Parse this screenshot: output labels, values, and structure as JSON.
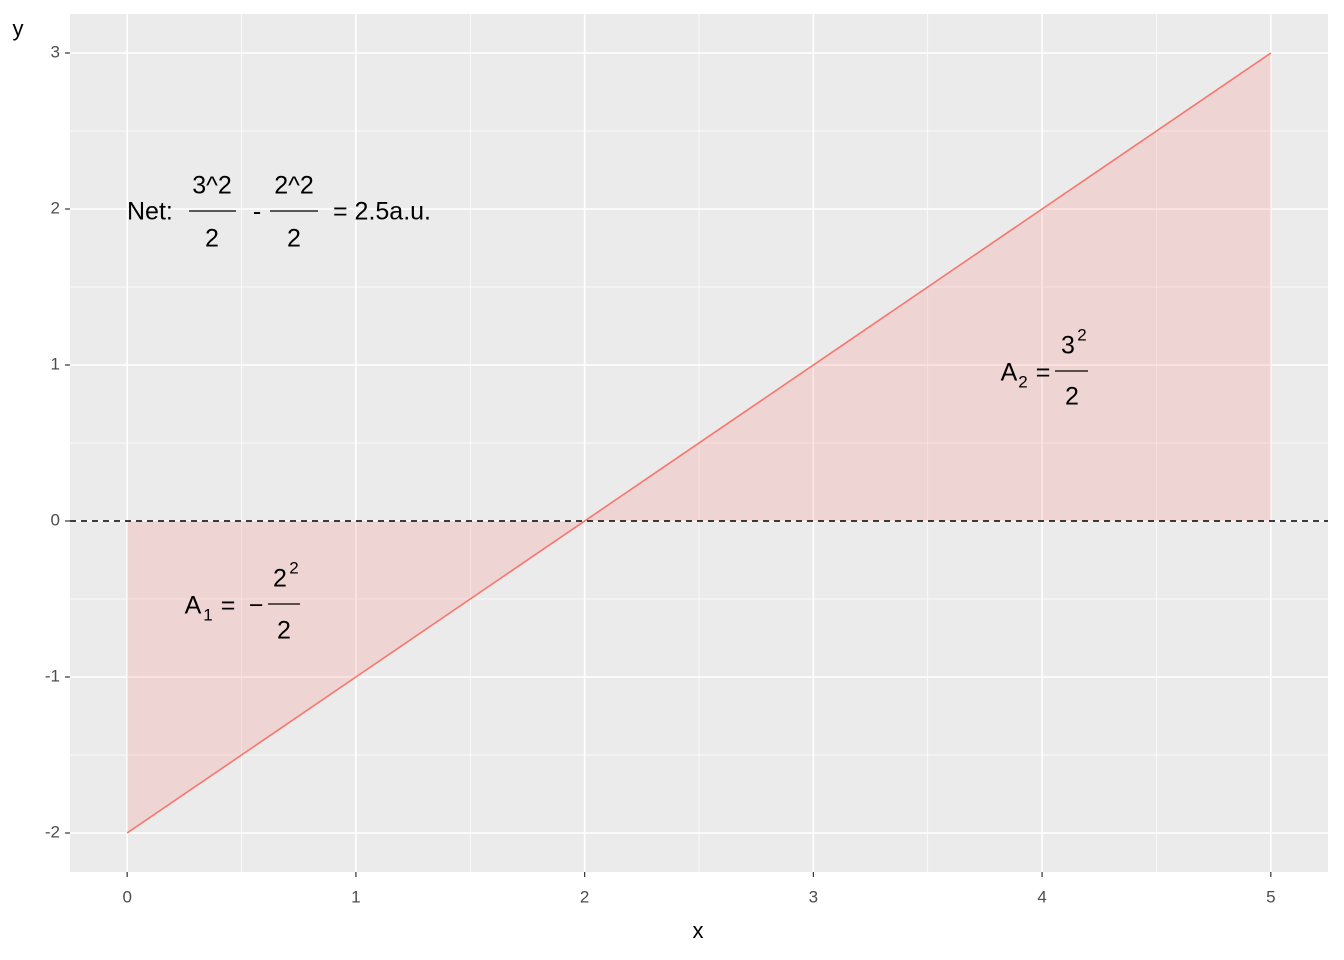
{
  "chart_data": {
    "type": "area",
    "x_label": "x",
    "y_label": "y",
    "xlim": [
      -0.25,
      5.25
    ],
    "ylim": [
      -2.25,
      3.25
    ],
    "xticks": [
      0,
      1,
      2,
      3,
      4,
      5
    ],
    "yticks": [
      -2,
      -1,
      0,
      1,
      2,
      3
    ],
    "grid": true,
    "minor_grid": true,
    "panel_color": "#ebebeb",
    "grid_color": "#ffffff",
    "series": [
      {
        "x": [
          0,
          5
        ],
        "values": [
          -2,
          3
        ],
        "color": "#F8766D",
        "fill_opacity": 0.2
      }
    ],
    "hline": {
      "value": 0,
      "color": "#000000",
      "dashed": true
    },
    "net_label": {
      "prefix": "Net:",
      "term1": {
        "numerator": "3^2",
        "denominator": "2"
      },
      "operator": "-",
      "term2": {
        "numerator": "2^2",
        "denominator": "2"
      },
      "result": "= 2.5a.u."
    },
    "area_labels": [
      {
        "symbol": "A",
        "subscript": "1",
        "relation": "=",
        "sign": "−",
        "base": "2",
        "exponent": "2",
        "denominator": "2"
      },
      {
        "symbol": "A",
        "subscript": "2",
        "relation": "=",
        "base": "3",
        "exponent": "2",
        "denominator": "2"
      }
    ]
  }
}
